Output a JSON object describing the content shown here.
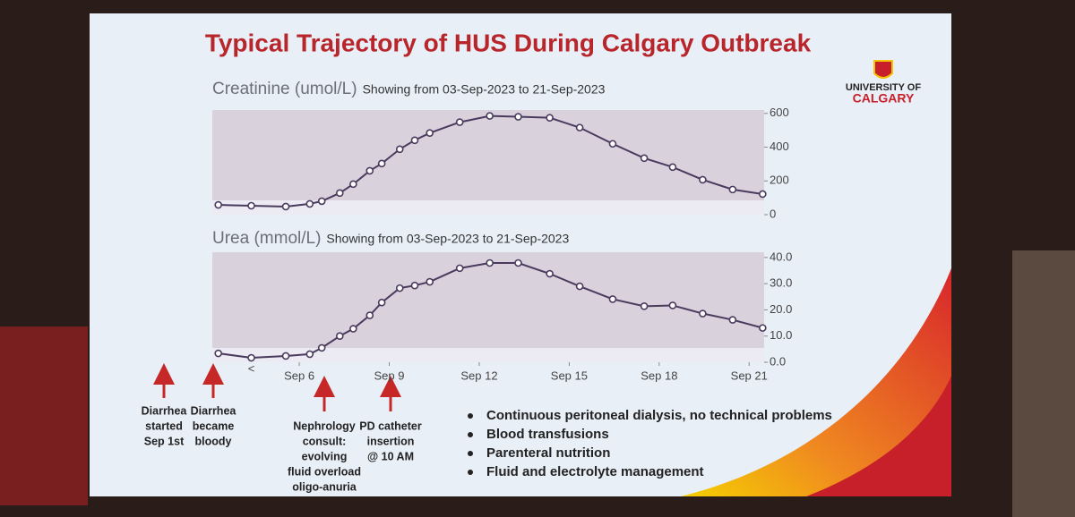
{
  "slide": {
    "title": "Typical Trajectory of HUS During Calgary Outbreak",
    "logo": [
      "UNIVERSITY OF",
      "CALGARY"
    ],
    "annotations": [
      {
        "lines": [
          "Diarrhea",
          "started",
          "Sep 1st"
        ]
      },
      {
        "lines": [
          "Diarrhea",
          "became",
          "bloody"
        ]
      },
      {
        "lines": [
          "Nephrology",
          "consult:",
          "evolving",
          "fluid overload",
          "oligo-anuria"
        ]
      },
      {
        "lines": [
          "PD catheter",
          "insertion",
          "@ 10 AM"
        ]
      }
    ],
    "bullets": [
      "Continuous  peritoneal dialysis, no technical problems",
      "Blood transfusions",
      "Parenteral nutrition",
      "Fluid and electrolyte management"
    ]
  },
  "chart_data": [
    {
      "type": "line",
      "title": "Creatinine (umol/L)",
      "subtitle": "Showing from 03-Sep-2023 to 21-Sep-2023",
      "color": "#4a3b5e",
      "x": [
        3.3,
        4.4,
        5.55,
        6.35,
        6.75,
        7.35,
        7.8,
        8.35,
        8.75,
        9.35,
        9.85,
        10.35,
        11.35,
        12.35,
        13.3,
        14.35,
        15.35,
        16.45,
        17.5,
        18.45,
        19.45,
        20.45,
        21.45
      ],
      "values": [
        58,
        53,
        48,
        64,
        80,
        128,
        181,
        260,
        303,
        388,
        441,
        484,
        548,
        585,
        580,
        574,
        516,
        420,
        335,
        282,
        207,
        149,
        122
      ],
      "xlim": [
        3.1,
        21.5
      ],
      "ylim": [
        0,
        620
      ],
      "yticks": [
        0,
        200,
        400,
        600
      ]
    },
    {
      "type": "line",
      "title": "Urea (mmol/L)",
      "subtitle": "Showing from 03-Sep-2023 to 21-Sep-2023",
      "color": "#4a3b5e",
      "x": [
        3.3,
        4.4,
        5.55,
        6.35,
        6.75,
        7.35,
        7.8,
        8.35,
        8.75,
        9.35,
        9.85,
        10.35,
        11.35,
        12.35,
        13.3,
        14.35,
        15.35,
        16.45,
        17.5,
        18.45,
        19.45,
        20.45,
        21.45
      ],
      "values": [
        3.4,
        1.7,
        2.4,
        3.1,
        5.5,
        10,
        12.8,
        17.9,
        22.8,
        28.3,
        29.3,
        30.7,
        35.9,
        37.9,
        37.9,
        33.8,
        29,
        24.1,
        21.4,
        21.7,
        18.6,
        16.2,
        13.1
      ],
      "marker_label": "<",
      "xlim": [
        3.1,
        21.5
      ],
      "ylim": [
        0,
        42
      ],
      "xticks": [
        {
          "value": 6,
          "label": "Sep 6"
        },
        {
          "value": 9,
          "label": "Sep 9"
        },
        {
          "value": 12,
          "label": "Sep 12"
        },
        {
          "value": 15,
          "label": "Sep 15"
        },
        {
          "value": 18,
          "label": "Sep 18"
        },
        {
          "value": 21,
          "label": "Sep 21"
        }
      ],
      "yticks": [
        {
          "value": 0,
          "label": "0.0"
        },
        {
          "value": 10,
          "label": "10.0"
        },
        {
          "value": 20,
          "label": "20.0"
        },
        {
          "value": 30,
          "label": "30.0"
        },
        {
          "value": 40,
          "label": "40.0"
        }
      ]
    }
  ]
}
